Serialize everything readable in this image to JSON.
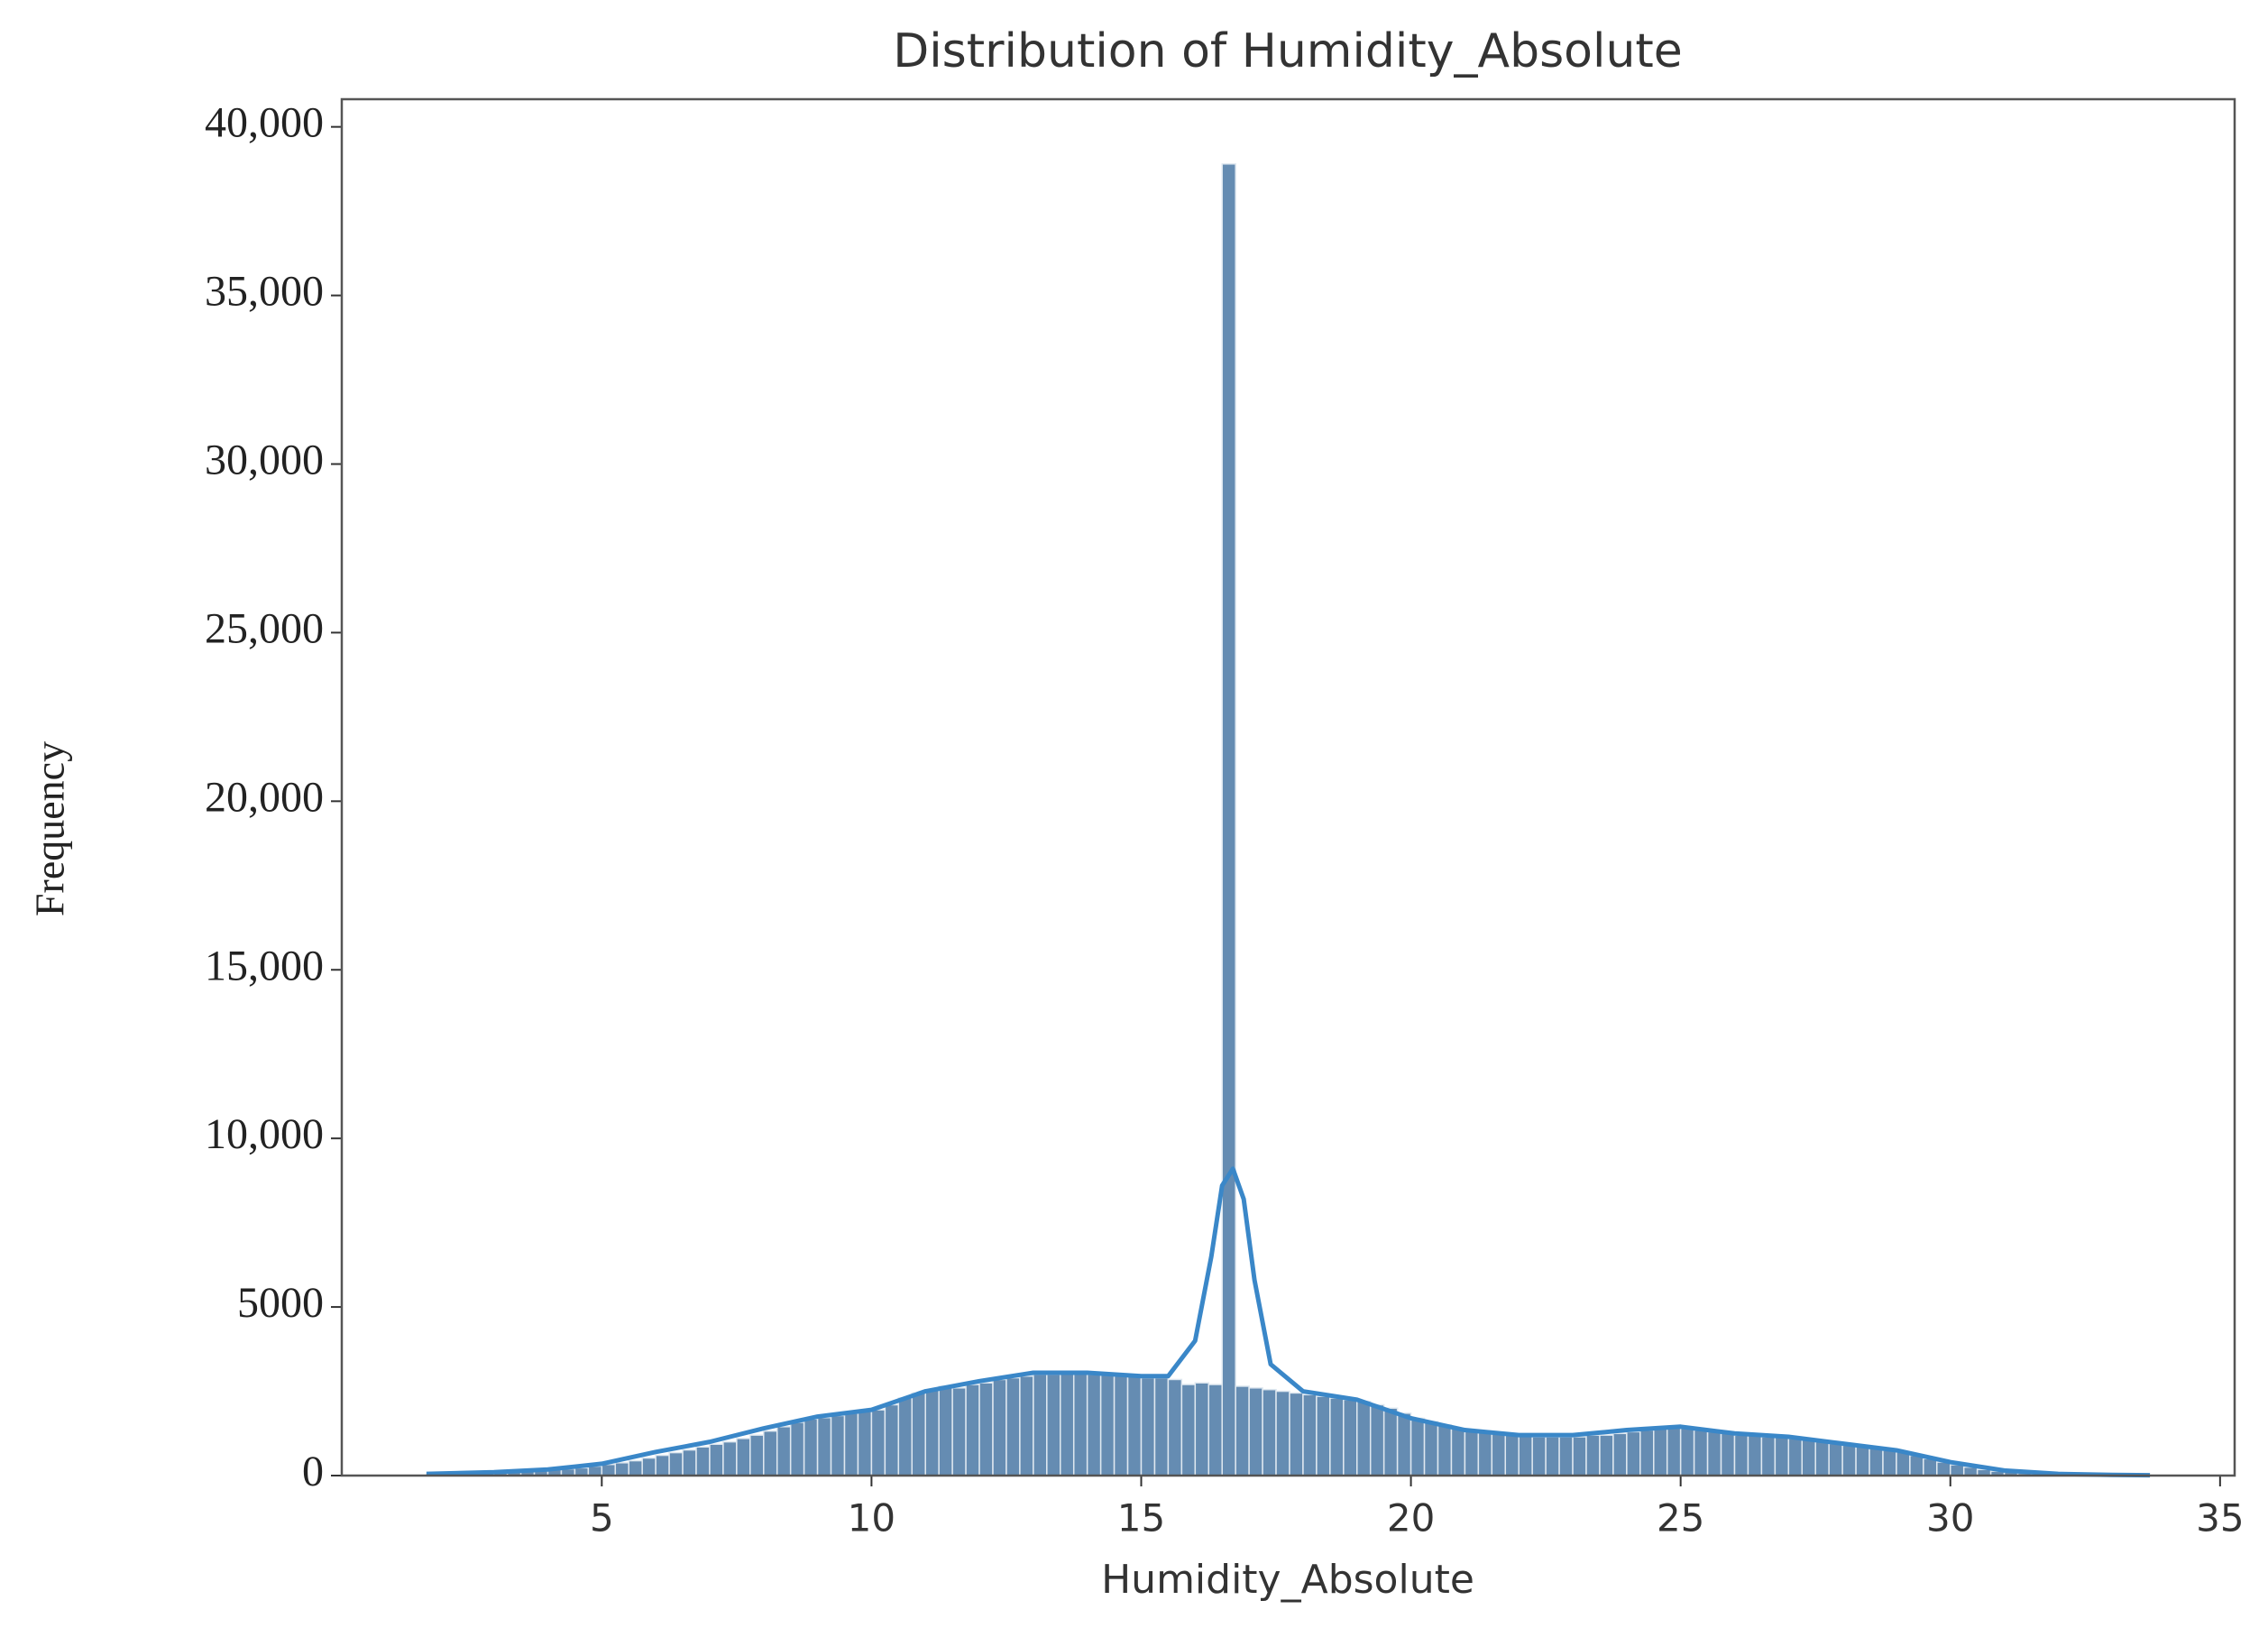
{
  "chart_data": {
    "type": "histogram",
    "title": "Distribution of Humidity_Absolute",
    "x_label": "Humidity_Absolute",
    "y_label": "Frequency",
    "bins": [
      1.75,
      2,
      2.25,
      2.5,
      2.75,
      3,
      3.25,
      3.5,
      3.75,
      4,
      4.25,
      4.5,
      4.75,
      5,
      5.25,
      5.5,
      5.75,
      6,
      6.25,
      6.5,
      6.75,
      7,
      7.25,
      7.5,
      7.75,
      8,
      8.25,
      8.5,
      8.75,
      9,
      9.25,
      9.5,
      9.75,
      10,
      10.25,
      10.5,
      10.75,
      11,
      11.25,
      11.5,
      11.75,
      12,
      12.25,
      12.5,
      12.75,
      13,
      13.25,
      13.5,
      13.75,
      14,
      14.25,
      14.5,
      14.75,
      15,
      15.25,
      15.5,
      15.75,
      16,
      16.25,
      16.5,
      16.75,
      17,
      17.25,
      17.5,
      17.75,
      18,
      18.25,
      18.5,
      18.75,
      19,
      19.25,
      19.5,
      19.75,
      20,
      20.25,
      20.5,
      20.75,
      21,
      21.25,
      21.5,
      21.75,
      22,
      22.25,
      22.5,
      22.75,
      23,
      23.25,
      23.5,
      23.75,
      24,
      24.25,
      24.5,
      24.75,
      25,
      25.25,
      25.5,
      25.75,
      26,
      26.25,
      26.5,
      26.75,
      27,
      27.25,
      27.5,
      27.75,
      28,
      28.25,
      28.5,
      28.75,
      29,
      29.25,
      29.5,
      29.75,
      30,
      30.25,
      30.5,
      30.75,
      31,
      31.25,
      31.5,
      31.75,
      32,
      32.25,
      32.5,
      32.75,
      33,
      33.25,
      33.5,
      33.75
    ],
    "values": [
      40,
      50,
      60,
      70,
      90,
      100,
      120,
      140,
      160,
      180,
      200,
      230,
      280,
      330,
      380,
      440,
      520,
      600,
      680,
      760,
      850,
      930,
      1000,
      1100,
      1200,
      1320,
      1450,
      1580,
      1680,
      1720,
      1780,
      1850,
      1900,
      1950,
      2100,
      2300,
      2450,
      2550,
      2650,
      2600,
      2700,
      2750,
      2850,
      2900,
      2950,
      3000,
      3000,
      3050,
      3050,
      3000,
      3000,
      2950,
      2950,
      2900,
      2900,
      2850,
      2700,
      2750,
      2700,
      38900,
      2650,
      2600,
      2550,
      2500,
      2450,
      2400,
      2350,
      2300,
      2250,
      2200,
      2100,
      2000,
      1850,
      1700,
      1600,
      1500,
      1400,
      1350,
      1300,
      1250,
      1200,
      1200,
      1150,
      1150,
      1150,
      1150,
      1200,
      1200,
      1250,
      1300,
      1350,
      1400,
      1450,
      1400,
      1350,
      1300,
      1250,
      1200,
      1200,
      1150,
      1150,
      1100,
      1050,
      1000,
      950,
      900,
      850,
      800,
      750,
      700,
      600,
      500,
      400,
      320,
      250,
      180,
      130,
      100,
      70,
      50,
      40,
      30,
      20,
      15,
      12,
      10,
      8,
      5
    ],
    "color": "#4a78a4",
    "kde": {
      "color": "#3a87c8",
      "x": [
        1.75,
        3,
        4,
        5,
        6,
        7,
        8,
        9,
        10,
        11,
        12,
        13,
        14,
        15,
        15.5,
        16,
        16.3,
        16.5,
        16.7,
        16.9,
        17.1,
        17.4,
        18,
        19,
        20,
        21,
        22,
        23,
        24,
        25,
        26,
        27,
        28,
        29,
        30,
        31,
        32,
        33,
        33.7
      ],
      "values": [
        50,
        100,
        180,
        350,
        700,
        1000,
        1400,
        1750,
        1950,
        2500,
        2800,
        3050,
        3050,
        2950,
        2950,
        4000,
        6500,
        8600,
        9100,
        8200,
        5800,
        3300,
        2500,
        2250,
        1700,
        1350,
        1200,
        1200,
        1350,
        1450,
        1250,
        1150,
        950,
        750,
        400,
        150,
        50,
        20,
        10
      ]
    },
    "xlim": [
      0.18,
      35.27
    ],
    "ylim": [
      0,
      40820
    ],
    "xticks": [
      5,
      10,
      15,
      20,
      25,
      30,
      35
    ],
    "yticks": [
      0,
      5000,
      {
        "value": 10000,
        "label": "10,000"
      },
      {
        "value": 15000,
        "label": "15,000"
      },
      {
        "value": 20000,
        "label": "20,000"
      },
      {
        "value": 25000,
        "label": "25,000"
      },
      {
        "value": 30000,
        "label": "30,000"
      },
      {
        "value": 35000,
        "label": "35,000"
      },
      {
        "value": 40000,
        "label": "40,000"
      }
    ]
  }
}
